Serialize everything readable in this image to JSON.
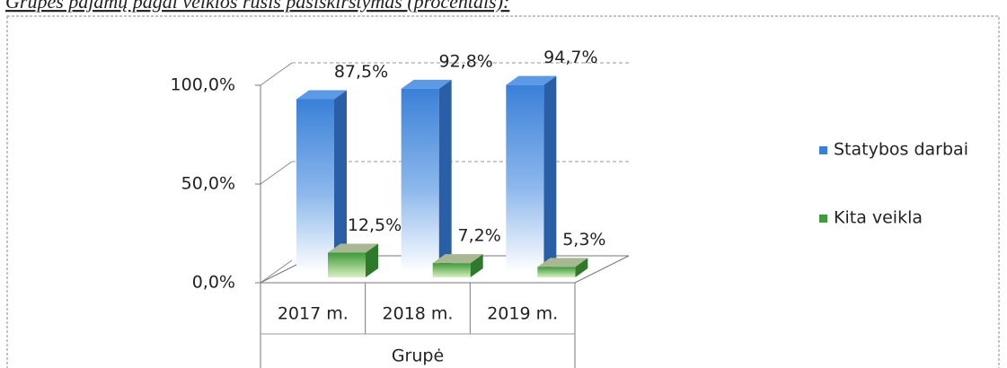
{
  "chart_data": {
    "type": "bar3d",
    "title": "Grupės pajamų pagal veiklos rūšis pasiskirstymas (procentais):",
    "categories": [
      "2017 m.",
      "2018 m.",
      "2019 m."
    ],
    "x_label": "Grupė",
    "series": [
      {
        "name": "Statybos darbai",
        "color": "#3a80d8",
        "values": [
          87.5,
          92.8,
          94.7
        ],
        "value_labels": [
          "87,5%",
          "92,8%",
          "94,7%"
        ]
      },
      {
        "name": "Kita veikla",
        "color": "#3e9a3a",
        "values": [
          12.5,
          7.2,
          5.3
        ],
        "value_labels": [
          "12,5%",
          "7,2%",
          "5,3%"
        ]
      }
    ],
    "ylim": [
      0,
      100
    ],
    "yticks": [
      {
        "value": 0,
        "label": "0,0%"
      },
      {
        "value": 50,
        "label": "50,0%"
      },
      {
        "value": 100,
        "label": "100,0%"
      }
    ],
    "grid": true,
    "legend": "right"
  }
}
